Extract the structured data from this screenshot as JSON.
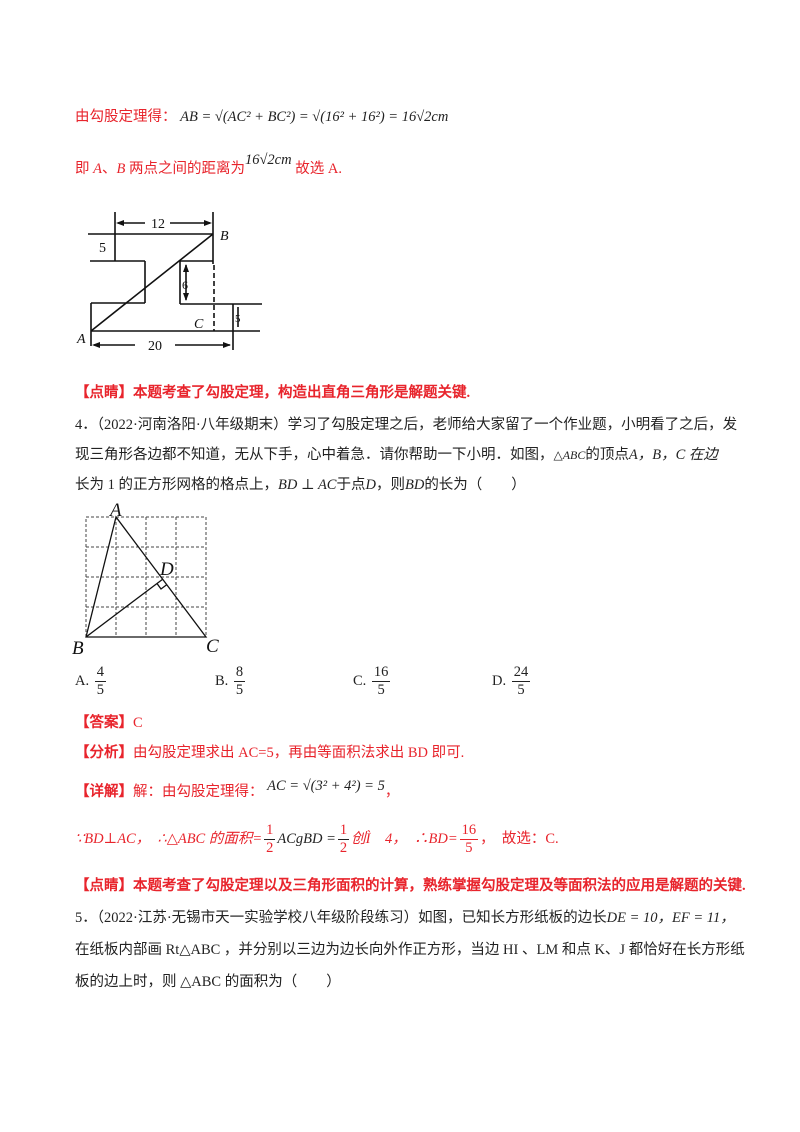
{
  "sol3": {
    "line1_label": "由勾股定理得：",
    "line1_formula": "AB = √(AC² + BC²) = √(16² + 16²) = 16√2cm",
    "line2_a": "即 ",
    "line2_A": "A",
    "line2_sep": "、",
    "line2_B": "B",
    "line2_b": " 两点之间的距离为",
    "line2_val": "16√2cm",
    "line2_c": " 故选 A.",
    "fig": {
      "label_12": "12",
      "label_5a": "5",
      "label_6": "6",
      "label_5b": "5",
      "label_20": "20",
      "A": "A",
      "B": "B",
      "C": "C"
    },
    "comment_tag": "【点睛】",
    "comment": "本题考查了勾股定理，构造出直角三角形是解题关键."
  },
  "q4": {
    "line1": "4．（2022·河南洛阳·八年级期末）学习了勾股定理之后，老师给大家留了一个作业题，小明看了之后，发",
    "line2_a": "现三角形各边都不知道，无从下手，心中着急．请你帮助一下小明．如图，",
    "line2_tri": "△ABC",
    "line2_b": "的顶点",
    "line2_c": "A，B，C 在边",
    "line3_a": "长为 1 的正方形网格的格点上，",
    "line3_f": "BD ⊥ AC",
    "line3_b": "于点",
    "line3_D": "D",
    "line3_c": "，则",
    "line3_BD": "BD",
    "line3_d": "的长为（　　）",
    "fig": {
      "A": "A",
      "B": "B",
      "C": "C",
      "D": "D"
    },
    "options": [
      {
        "letter": "A.",
        "num": "4",
        "den": "5"
      },
      {
        "letter": "B.",
        "num": "8",
        "den": "5"
      },
      {
        "letter": "C.",
        "num": "16",
        "den": "5"
      },
      {
        "letter": "D.",
        "num": "24",
        "den": "5"
      }
    ],
    "answer_tag": "【答案】",
    "answer": "C",
    "analysis_tag": "【分析】",
    "analysis": "由勾股定理求出 AC=5，再由等面积法求出 BD 即可.",
    "detail_tag": "【详解】",
    "detail": "解：由勾股定理得：",
    "detail_formula": "AC = √(3² + 4²) = 5",
    "detail_end": "，",
    "calc_a": "∵BD⊥AC，　∴△ABC 的面积=",
    "calc_h": "1",
    "calc_2": "2",
    "calc_b": "ACgBD =",
    "calc_c": "创Ì　4，　∴BD=",
    "calc_num": "16",
    "calc_den": "5",
    "calc_d": "，　故选：C.",
    "comment_tag": "【点睛】",
    "comment": "本题考查了勾股定理以及三角形面积的计算，熟练掌握勾股定理及等面积法的应用是解题的关键."
  },
  "q5": {
    "line1": "5．（2022·江苏·无锡市天一实验学校八年级阶段练习）如图，已知长方形纸板的边长",
    "line1_f": "DE = 10，EF = 11，",
    "line2": "在纸板内部画 Rt△ABC ，并分别以三边为边长向外作正方形，当边 HI 、LM 和点 K、J 都恰好在长方形纸",
    "line3": "板的边上时，则 △ABC 的面积为（　　）"
  },
  "colors": {
    "red": "#e8242c",
    "text": "#222222"
  }
}
